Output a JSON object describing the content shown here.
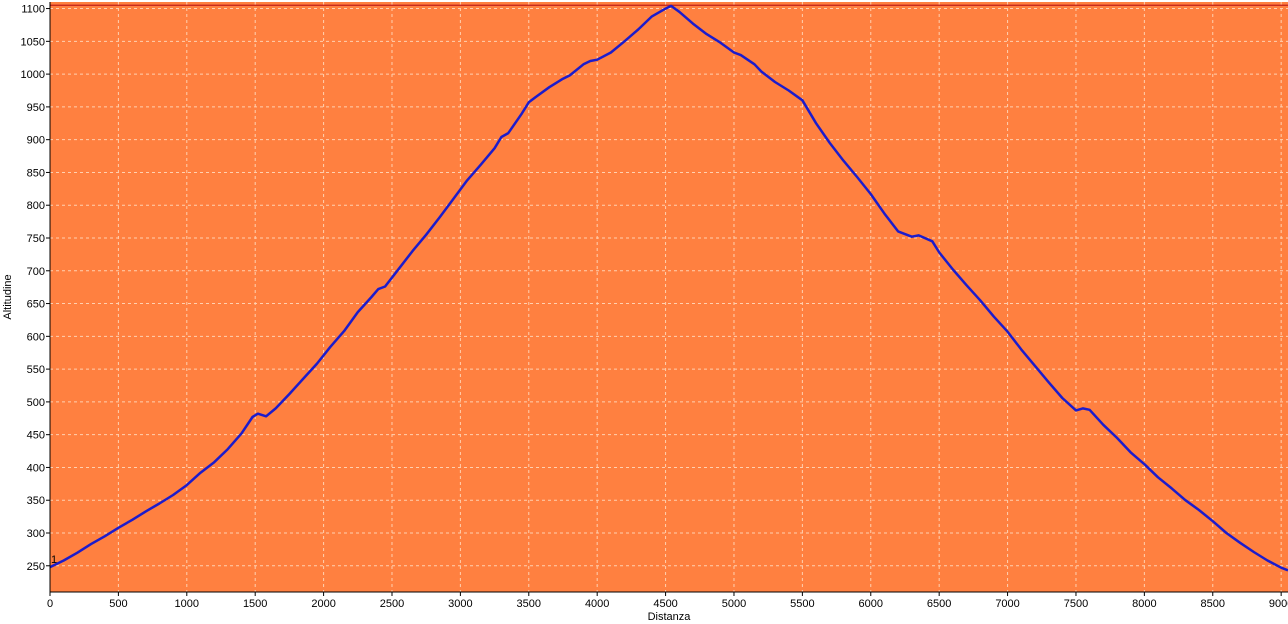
{
  "chart_data": {
    "type": "line",
    "title": "",
    "xlabel": "Distanza",
    "ylabel": "Altitudine",
    "xlim": [
      0,
      9050
    ],
    "ylim": [
      210,
      1110
    ],
    "xticks": [
      0,
      500,
      1000,
      1500,
      2000,
      2500,
      3000,
      3500,
      4000,
      4500,
      5000,
      5500,
      6000,
      6500,
      7000,
      7500,
      8000,
      8500,
      9000
    ],
    "yticks": [
      250,
      300,
      350,
      400,
      450,
      500,
      550,
      600,
      650,
      700,
      750,
      800,
      850,
      900,
      950,
      1000,
      1050,
      1100
    ],
    "tick_labels_x": [
      "0",
      "500",
      "1000",
      "1500",
      "2000",
      "2500",
      "3000",
      "3500",
      "4000",
      "4500",
      "5000",
      "5500",
      "6000",
      "6500",
      "7000",
      "7500",
      "8000",
      "8500",
      "9000"
    ],
    "tick_labels_y": [
      "250",
      "300",
      "350",
      "400",
      "450",
      "500",
      "550",
      "600",
      "650",
      "700",
      "750",
      "800",
      "850",
      "900",
      "950",
      "1000",
      "1050",
      "1100"
    ],
    "grid": true,
    "reference_line": {
      "y": 1105,
      "color": "#c0201a"
    },
    "start_marker": "1",
    "colors": {
      "plot_bg": "#ff8040",
      "line": "#1c1ccc",
      "grid": "#ffd0b0",
      "axis": "#000000"
    },
    "series": [
      {
        "name": "",
        "x": [
          0,
          100,
          200,
          300,
          400,
          500,
          600,
          700,
          800,
          900,
          1000,
          1100,
          1200,
          1300,
          1400,
          1480,
          1520,
          1580,
          1650,
          1750,
          1850,
          1950,
          2050,
          2150,
          2250,
          2350,
          2400,
          2450,
          2550,
          2650,
          2750,
          2850,
          2950,
          3050,
          3150,
          3250,
          3300,
          3350,
          3450,
          3500,
          3550,
          3650,
          3750,
          3800,
          3900,
          3950,
          4000,
          4100,
          4200,
          4300,
          4400,
          4500,
          4540,
          4600,
          4700,
          4800,
          4900,
          5000,
          5050,
          5150,
          5200,
          5300,
          5400,
          5500,
          5600,
          5700,
          5800,
          5900,
          6000,
          6100,
          6200,
          6300,
          6350,
          6450,
          6500,
          6600,
          6700,
          6800,
          6900,
          7000,
          7100,
          7200,
          7300,
          7400,
          7500,
          7550,
          7600,
          7700,
          7800,
          7900,
          8000,
          8100,
          8200,
          8300,
          8400,
          8500,
          8600,
          8700,
          8800,
          8900,
          9000,
          9050
        ],
        "y": [
          248,
          258,
          270,
          283,
          295,
          308,
          320,
          333,
          345,
          358,
          373,
          392,
          408,
          428,
          452,
          477,
          482,
          478,
          490,
          512,
          535,
          558,
          584,
          608,
          637,
          660,
          672,
          676,
          703,
          730,
          755,
          782,
          810,
          838,
          862,
          887,
          904,
          910,
          940,
          957,
          965,
          980,
          993,
          998,
          1015,
          1020,
          1022,
          1033,
          1050,
          1068,
          1088,
          1100,
          1104,
          1095,
          1077,
          1061,
          1048,
          1033,
          1029,
          1015,
          1004,
          988,
          975,
          960,
          925,
          895,
          868,
          843,
          817,
          787,
          760,
          752,
          754,
          745,
          728,
          702,
          678,
          655,
          630,
          607,
          580,
          555,
          530,
          506,
          487,
          490,
          488,
          465,
          445,
          423,
          405,
          385,
          368,
          350,
          335,
          318,
          300,
          285,
          271,
          258,
          247,
          243
        ]
      }
    ]
  }
}
